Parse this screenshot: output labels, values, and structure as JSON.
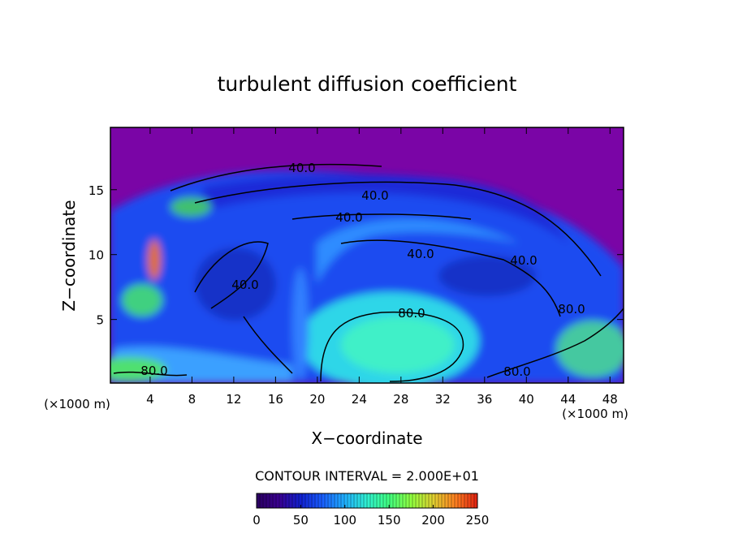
{
  "chart_data": {
    "type": "contour",
    "title": "turbulent diffusion coefficient",
    "x_label": "X−coordinate",
    "y_label": "Z−coordinate",
    "x_unit_label": "(×1000 m)",
    "y_unit_label": "(×1000 m)",
    "xlim": [
      0.2,
      49.3
    ],
    "xticks": [
      4,
      8,
      12,
      16,
      20,
      24,
      28,
      32,
      36,
      40,
      44,
      48
    ],
    "ylim": [
      0.1,
      19.8
    ],
    "yticks": [
      5,
      10,
      15
    ],
    "contour_interval_label": "CONTOUR INTERVAL = 2.000E+01",
    "contour_labels": [
      "40.0",
      "40.0",
      "40.0",
      "40.0",
      "40.0",
      "40.0",
      "80.0",
      "80.0",
      "80.0"
    ],
    "colorbar": {
      "clim": [
        0,
        250
      ],
      "ticks": [
        0,
        50,
        100,
        150,
        200,
        250
      ],
      "colors": [
        "#2a0060",
        "#3a0090",
        "#1020d0",
        "#1a60ff",
        "#20b0ff",
        "#30f0d0",
        "#40ff80",
        "#90ff40",
        "#e0d030",
        "#ff8020",
        "#e02010"
      ]
    }
  }
}
